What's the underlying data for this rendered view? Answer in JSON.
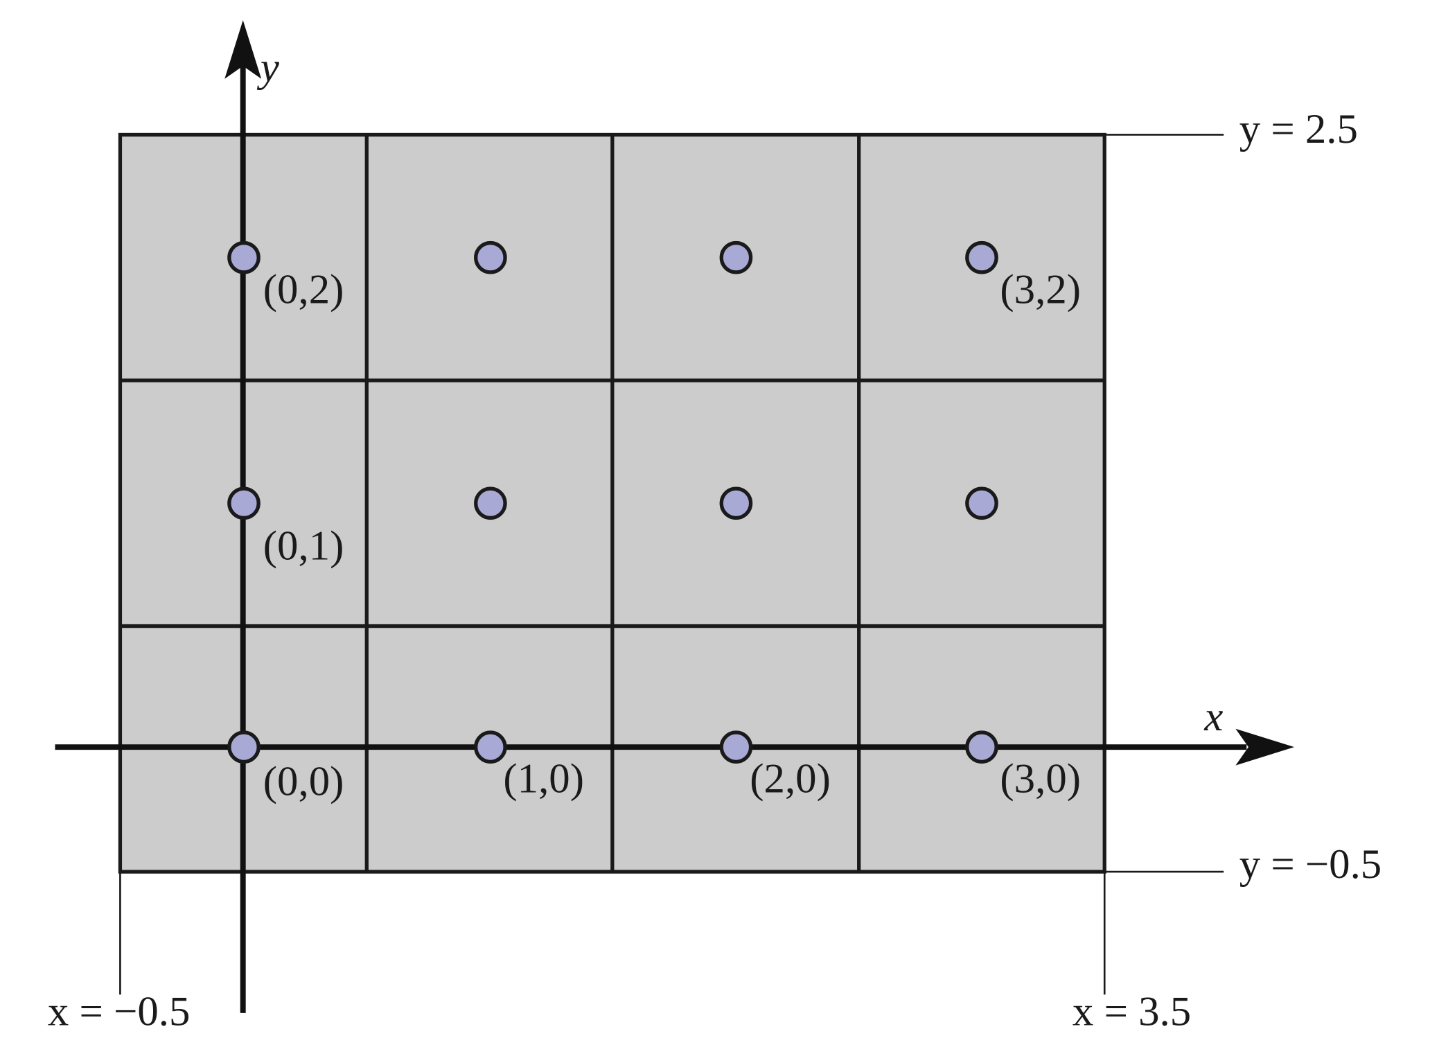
{
  "axes": {
    "x": "x",
    "y": "y"
  },
  "bounds": {
    "top": "y = 2.5",
    "bottom": "y = −0.5",
    "left": "x = −0.5",
    "right": "x = 3.5"
  },
  "point_labels": [
    "(0,2)",
    "(3,2)",
    "(0,1)",
    "(0,0)",
    "(1,0)",
    "(2,0)",
    "(3,0)"
  ]
}
